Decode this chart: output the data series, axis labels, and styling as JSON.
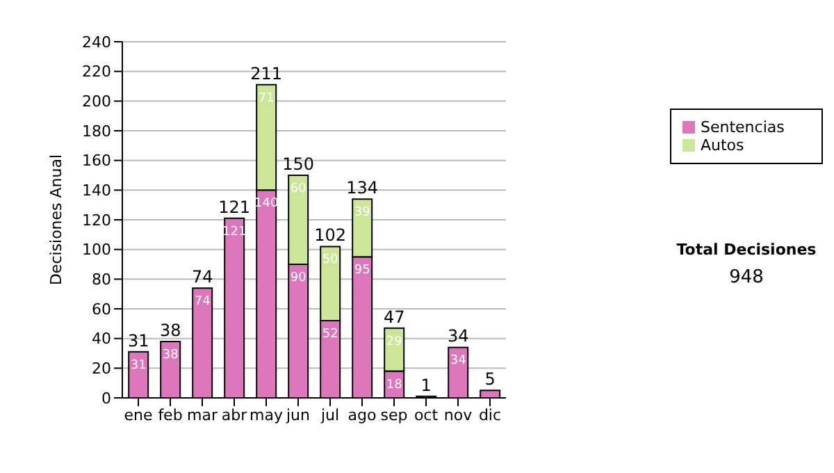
{
  "chart_data": {
    "type": "bar",
    "stacked": true,
    "ylabel": "Decisiones Anual",
    "categories": [
      "ene",
      "feb",
      "mar",
      "abr",
      "may",
      "jun",
      "jul",
      "ago",
      "sep",
      "oct",
      "nov",
      "dic"
    ],
    "series": [
      {
        "name": "Sentencias",
        "color": "#dd77bb",
        "values": [
          31,
          38,
          74,
          121,
          140,
          90,
          52,
          95,
          18,
          1,
          34,
          5
        ],
        "value_labels": [
          "31",
          "38",
          "74",
          "121",
          "140",
          "90",
          "52",
          "95",
          "18",
          null,
          "34",
          null
        ]
      },
      {
        "name": "Autos",
        "color": "#cce699",
        "values": [
          0,
          0,
          0,
          0,
          71,
          60,
          50,
          39,
          29,
          0,
          0,
          0
        ],
        "value_labels": [
          null,
          null,
          null,
          null,
          "71",
          "60",
          "50",
          "39",
          "29",
          null,
          null,
          null
        ]
      }
    ],
    "totals": [
      "31",
      "38",
      "74",
      "121",
      "211",
      "150",
      "102",
      "134",
      "47",
      "1",
      "34",
      "5"
    ],
    "ylim": [
      0,
      240
    ],
    "yticks": [
      0,
      20,
      40,
      60,
      80,
      100,
      120,
      140,
      160,
      180,
      200,
      220,
      240
    ],
    "grid": "y",
    "legend": "right",
    "annotations": [
      "Total Decisiones",
      "948"
    ]
  }
}
